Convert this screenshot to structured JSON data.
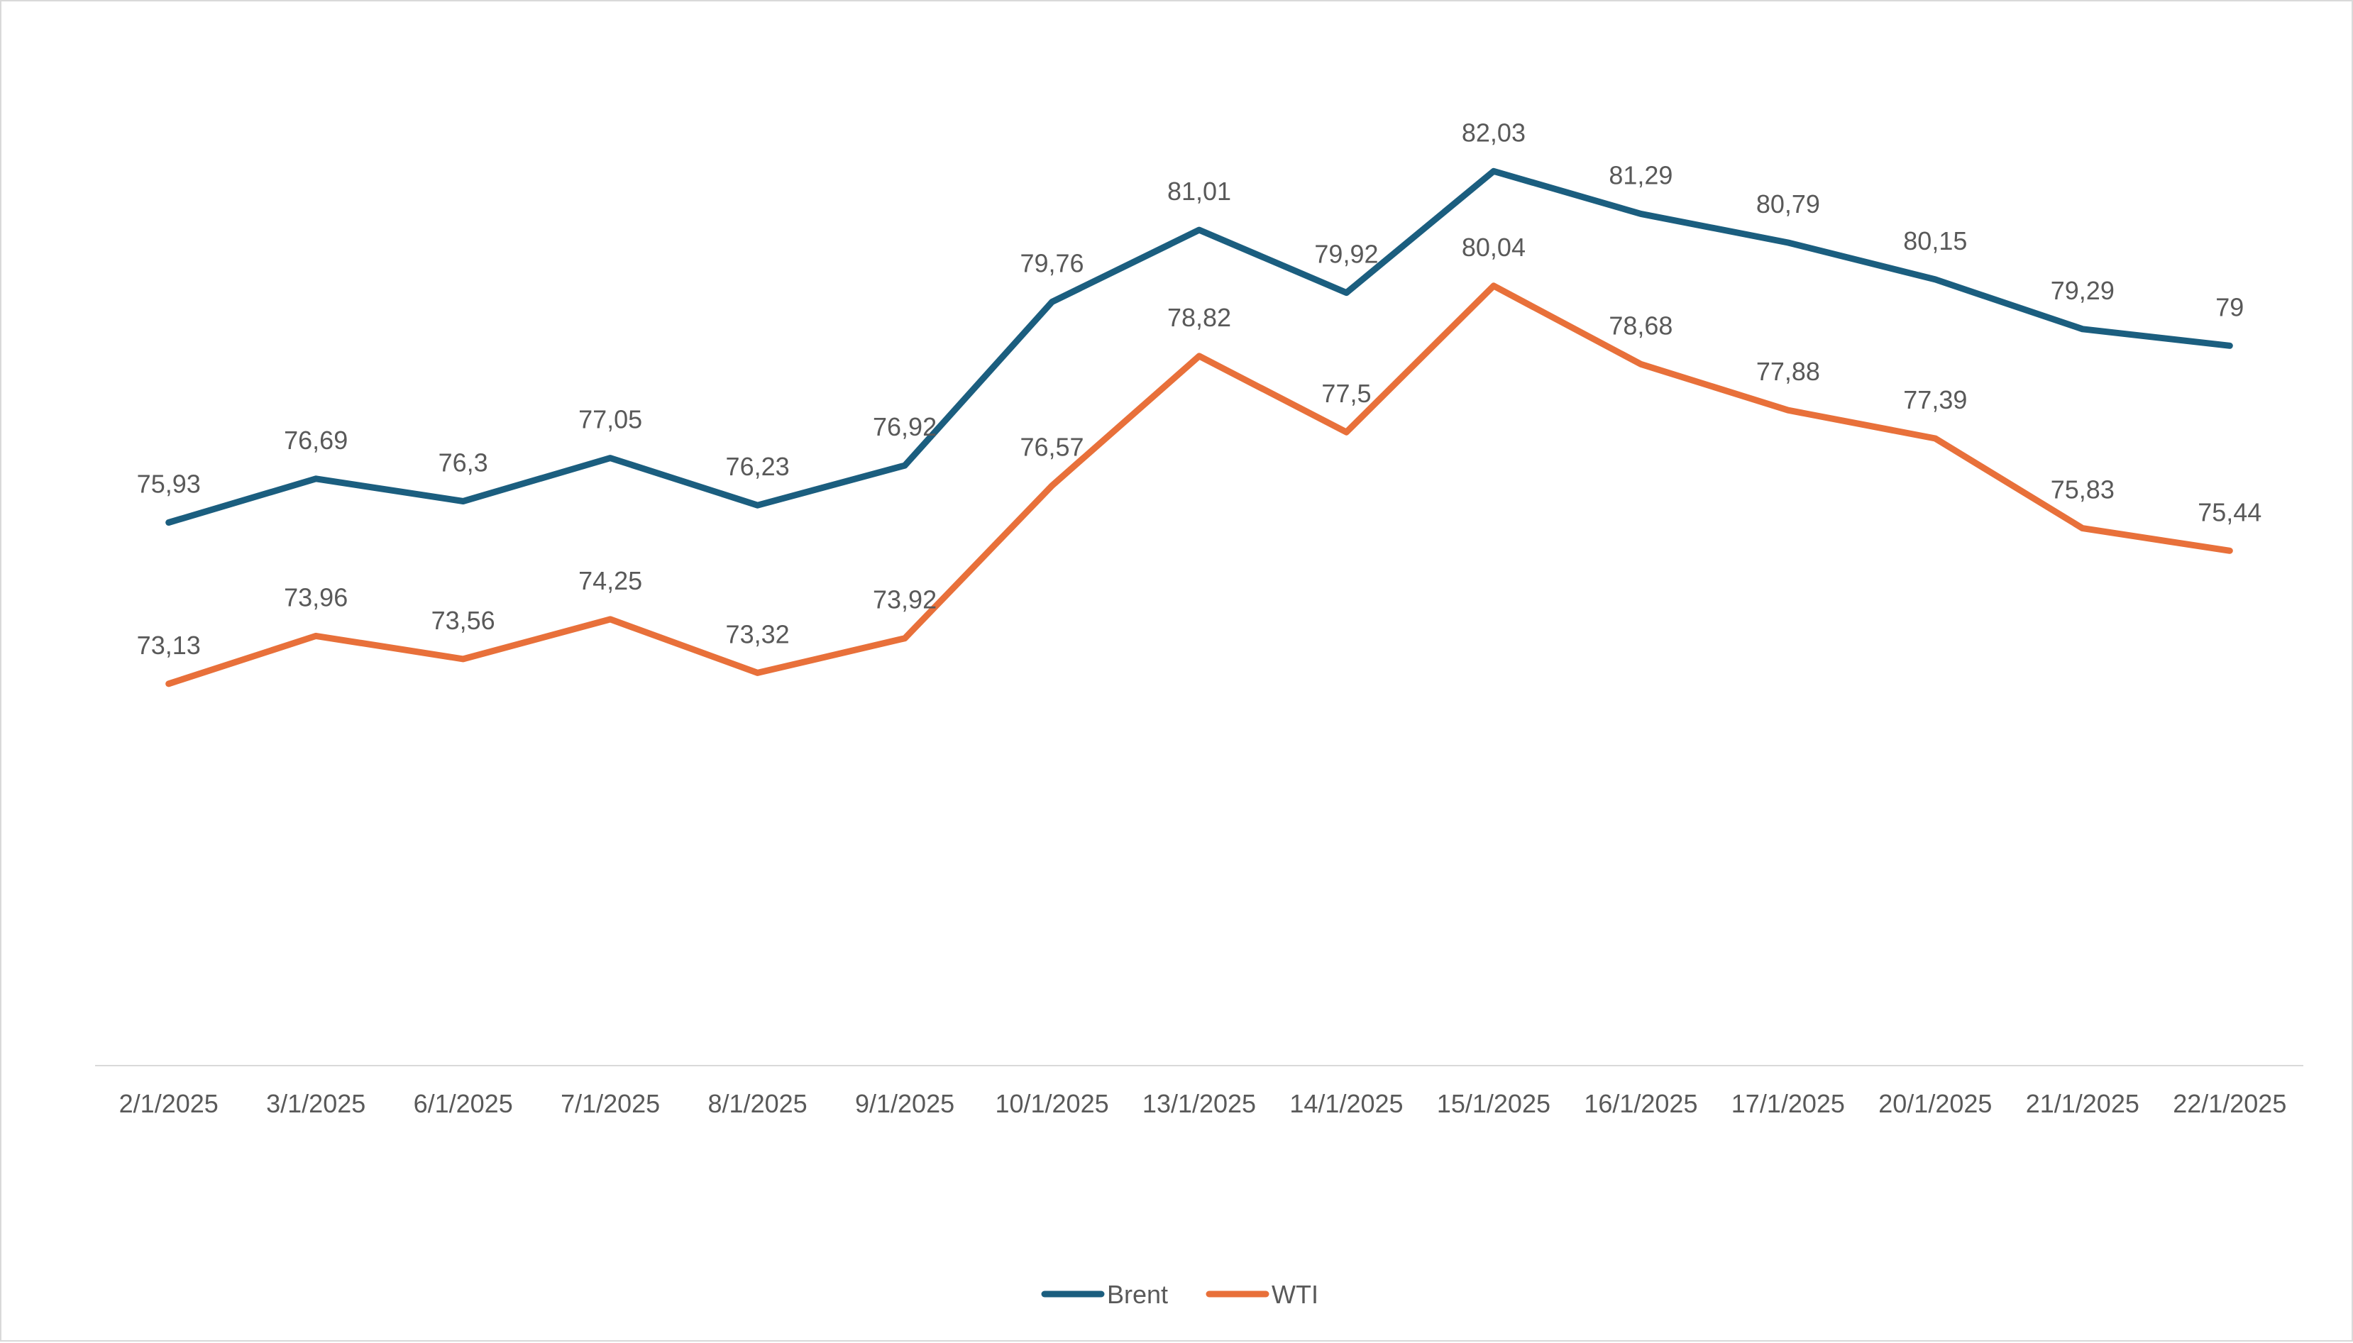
{
  "chart_data": {
    "type": "line",
    "title": "",
    "xlabel": "",
    "ylabel": "",
    "categories": [
      "2/1/2025",
      "3/1/2025",
      "6/1/2025",
      "7/1/2025",
      "8/1/2025",
      "9/1/2025",
      "10/1/2025",
      "13/1/2025",
      "14/1/2025",
      "15/1/2025",
      "16/1/2025",
      "17/1/2025",
      "20/1/2025",
      "21/1/2025",
      "22/1/2025"
    ],
    "series": [
      {
        "name": "Brent",
        "color": "#1b5e7f",
        "values": [
          75.93,
          76.69,
          76.3,
          77.05,
          76.23,
          76.92,
          79.76,
          81.01,
          79.92,
          82.03,
          81.29,
          80.79,
          80.15,
          79.29,
          79
        ],
        "labels": [
          "75,93",
          "76,69",
          "76,3",
          "77,05",
          "76,23",
          "76,92",
          "79,76",
          "81,01",
          "79,92",
          "82,03",
          "81,29",
          "80,79",
          "80,15",
          "79,29",
          "79"
        ]
      },
      {
        "name": "WTI",
        "color": "#e8703a",
        "values": [
          73.13,
          73.96,
          73.56,
          74.25,
          73.32,
          73.92,
          76.57,
          78.82,
          77.5,
          80.04,
          78.68,
          77.88,
          77.39,
          75.83,
          75.44
        ],
        "labels": [
          "73,13",
          "73,96",
          "73,56",
          "74,25",
          "73,32",
          "73,92",
          "76,57",
          "78,82",
          "77,5",
          "80,04",
          "78,68",
          "77,88",
          "77,39",
          "75,83",
          "75,44"
        ]
      }
    ],
    "ylim": [
      66.5,
      83.5
    ],
    "y_axis_visible": false,
    "grid": false,
    "data_labels": true,
    "legend": "bottom-center",
    "axis_color": "#d9d9d9",
    "text_color": "#595959"
  }
}
